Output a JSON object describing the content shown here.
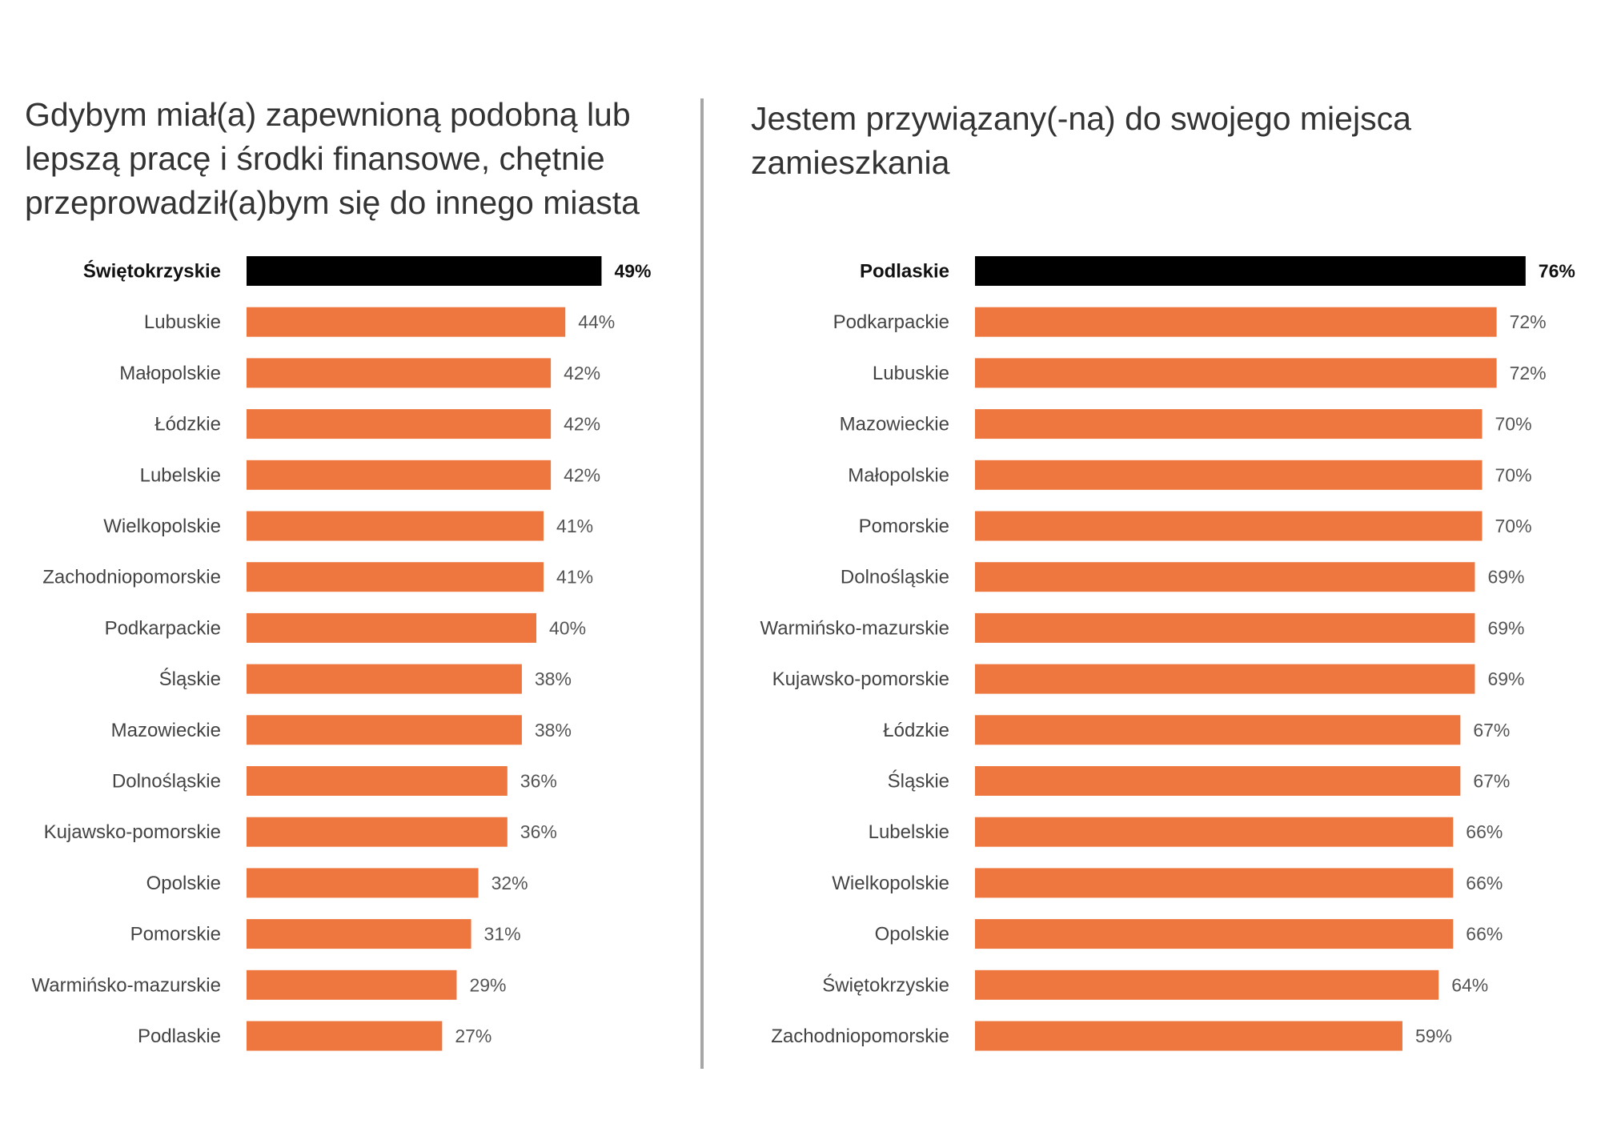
{
  "colors": {
    "bar": "#ed773f",
    "highlight": "#000000"
  },
  "chart_data": [
    {
      "type": "bar",
      "orientation": "horizontal",
      "title": "Gdybym miał(a) zapewnioną podobną lub lepszą pracę i środki finansowe, chętnie przeprowadził(a)bym się do innego miasta",
      "unit": "%",
      "highlight_index": 0,
      "categories": [
        "Świętokrzyskie",
        "Lubuskie",
        "Małopolskie",
        "Łódzkie",
        "Lubelskie",
        "Wielkopolskie",
        "Zachodniopomorskie",
        "Podkarpackie",
        "Śląskie",
        "Mazowieckie",
        "Dolnośląskie",
        "Kujawsko-pomorskie",
        "Opolskie",
        "Pomorskie",
        "Warmińsko-mazurskie",
        "Podlaskie"
      ],
      "values": [
        49,
        44,
        42,
        42,
        42,
        41,
        41,
        40,
        38,
        38,
        36,
        36,
        32,
        31,
        29,
        27
      ],
      "labels": [
        "49%",
        "44%",
        "42%",
        "42%",
        "42%",
        "41%",
        "41%",
        "40%",
        "38%",
        "38%",
        "36%",
        "36%",
        "32%",
        "31%",
        "29%",
        "27%"
      ]
    },
    {
      "type": "bar",
      "orientation": "horizontal",
      "title": "Jestem przywiązany(-na) do swojego miejsca zamieszkania",
      "unit": "%",
      "highlight_index": 0,
      "categories": [
        "Podlaskie",
        "Podkarpackie",
        "Lubuskie",
        "Mazowieckie",
        "Małopolskie",
        "Pomorskie",
        "Dolnośląskie",
        "Warmińsko-mazurskie",
        "Kujawsko-pomorskie",
        "Łódzkie",
        "Śląskie",
        "Lubelskie",
        "Wielkopolskie",
        "Opolskie",
        "Świętokrzyskie",
        "Zachodniopomorskie"
      ],
      "values": [
        76,
        72,
        72,
        70,
        70,
        70,
        69,
        69,
        69,
        67,
        67,
        66,
        66,
        66,
        64,
        59
      ],
      "labels": [
        "76%",
        "72%",
        "72%",
        "70%",
        "70%",
        "70%",
        "69%",
        "69%",
        "69%",
        "67%",
        "67%",
        "66%",
        "66%",
        "66%",
        "64%",
        "59%"
      ]
    }
  ]
}
